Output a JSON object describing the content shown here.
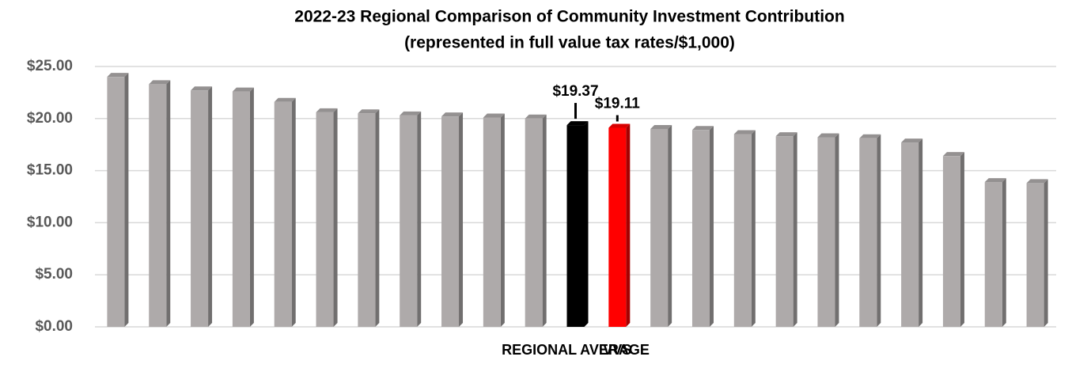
{
  "chart_data": {
    "type": "bar",
    "title": "2022-23 Regional Comparison of Community Investment Contribution",
    "subtitle": "(represented in full value tax rates/$1,000)",
    "categories": [
      null,
      null,
      null,
      null,
      null,
      null,
      null,
      null,
      null,
      null,
      null,
      "REGIONAL AVERAGE",
      "VVS",
      null,
      null,
      null,
      null,
      null,
      null,
      null,
      null,
      null,
      null
    ],
    "values": [
      24.0,
      23.3,
      22.7,
      22.6,
      21.6,
      20.6,
      20.5,
      20.3,
      20.2,
      20.1,
      20.0,
      19.37,
      19.11,
      19.0,
      18.9,
      18.5,
      18.3,
      18.2,
      18.1,
      17.7,
      16.4,
      13.9,
      13.8
    ],
    "value_labels": [
      null,
      null,
      null,
      null,
      null,
      null,
      null,
      null,
      null,
      null,
      null,
      "$19.37",
      "$19.11",
      null,
      null,
      null,
      null,
      null,
      null,
      null,
      null,
      null,
      null
    ],
    "colors": [
      "#aeaaaa",
      "#aeaaaa",
      "#aeaaaa",
      "#aeaaaa",
      "#aeaaaa",
      "#aeaaaa",
      "#aeaaaa",
      "#aeaaaa",
      "#aeaaaa",
      "#aeaaaa",
      "#aeaaaa",
      "#000000",
      "#ff0000",
      "#aeaaaa",
      "#aeaaaa",
      "#aeaaaa",
      "#aeaaaa",
      "#aeaaaa",
      "#aeaaaa",
      "#aeaaaa",
      "#aeaaaa",
      "#aeaaaa",
      "#aeaaaa"
    ],
    "ylim": [
      0,
      25
    ],
    "yticks": [
      {
        "value": 0,
        "label": "$0.00"
      },
      {
        "value": 5,
        "label": "$5.00"
      },
      {
        "value": 10,
        "label": "$10.00"
      },
      {
        "value": 15,
        "label": "$15.00"
      },
      {
        "value": 20,
        "label": "$20.00"
      },
      {
        "value": 25,
        "label": "$25.00"
      }
    ],
    "grid": true
  }
}
